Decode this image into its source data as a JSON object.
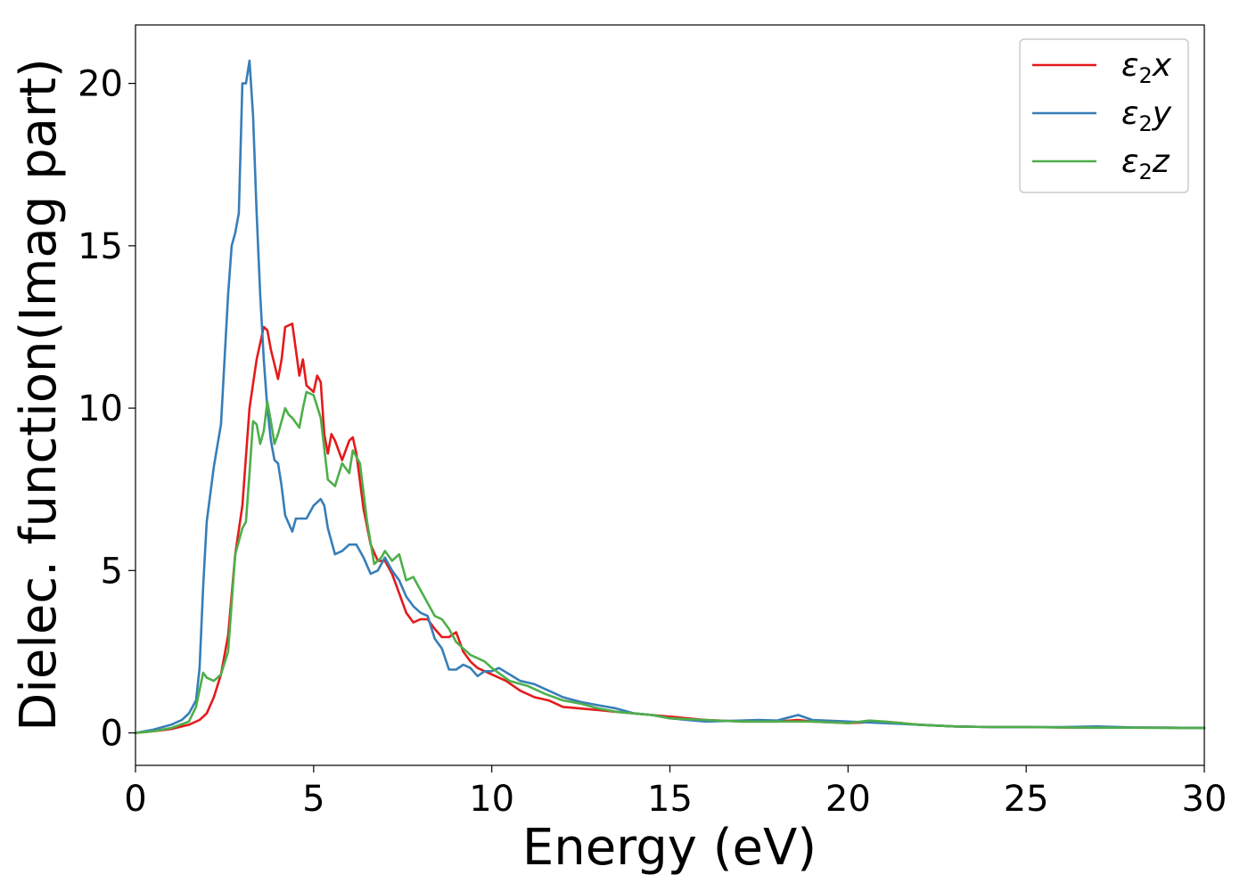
{
  "chart_data": {
    "type": "line",
    "title": "",
    "xlabel": "Energy (eV)",
    "ylabel": "Dielec. function(Imag part)",
    "xlim": [
      0,
      30
    ],
    "ylim": [
      -1.0,
      21.8
    ],
    "xticks": [
      0,
      5,
      10,
      15,
      20,
      25,
      30
    ],
    "yticks": [
      0,
      5,
      10,
      15,
      20
    ],
    "grid": false,
    "legend_position": "top-right",
    "series": [
      {
        "name": "ε₂x",
        "legend_main": "ε",
        "legend_sub": "2",
        "legend_var": "x",
        "color": "#e41a1c",
        "x": [
          0,
          0.5,
          1.0,
          1.5,
          1.8,
          2.0,
          2.2,
          2.4,
          2.6,
          2.8,
          3.0,
          3.2,
          3.4,
          3.6,
          3.7,
          3.8,
          4.0,
          4.1,
          4.2,
          4.4,
          4.5,
          4.6,
          4.7,
          4.8,
          5.0,
          5.1,
          5.2,
          5.3,
          5.4,
          5.5,
          5.6,
          5.8,
          6.0,
          6.1,
          6.2,
          6.4,
          6.6,
          6.8,
          7.0,
          7.2,
          7.4,
          7.6,
          7.8,
          8.0,
          8.2,
          8.4,
          8.6,
          8.8,
          9.0,
          9.2,
          9.4,
          9.6,
          9.8,
          10.0,
          10.4,
          10.8,
          11.2,
          11.6,
          12.0,
          12.5,
          13.0,
          13.5,
          14.0,
          14.5,
          15.0,
          16.0,
          17.0,
          18.0,
          18.6,
          19.0,
          20.0,
          21.0,
          22.0,
          23.0,
          24.0,
          25.0,
          26.0,
          27.0,
          28.0,
          29.0,
          30.0
        ],
        "values": [
          0.0,
          0.05,
          0.12,
          0.25,
          0.4,
          0.6,
          1.1,
          1.8,
          3.0,
          5.5,
          7.0,
          10.0,
          11.5,
          12.5,
          12.4,
          11.8,
          10.9,
          11.5,
          12.5,
          12.6,
          11.8,
          11.0,
          11.5,
          10.7,
          10.5,
          11.0,
          10.8,
          9.2,
          8.6,
          9.2,
          9.0,
          8.4,
          9.0,
          9.1,
          8.6,
          6.9,
          5.8,
          5.3,
          5.3,
          4.9,
          4.3,
          3.7,
          3.4,
          3.5,
          3.5,
          3.2,
          2.95,
          2.95,
          3.1,
          2.5,
          2.2,
          2.0,
          1.9,
          1.8,
          1.6,
          1.3,
          1.1,
          1.0,
          0.8,
          0.75,
          0.7,
          0.65,
          0.6,
          0.55,
          0.5,
          0.4,
          0.35,
          0.35,
          0.4,
          0.35,
          0.3,
          0.35,
          0.25,
          0.2,
          0.18,
          0.18,
          0.17,
          0.16,
          0.16,
          0.16,
          0.15
        ]
      },
      {
        "name": "ε₂y",
        "legend_main": "ε",
        "legend_sub": "2",
        "legend_var": "y",
        "color": "#377eb8",
        "x": [
          0,
          0.5,
          1.0,
          1.3,
          1.5,
          1.7,
          1.8,
          1.9,
          2.0,
          2.2,
          2.4,
          2.6,
          2.7,
          2.8,
          2.9,
          3.0,
          3.1,
          3.2,
          3.3,
          3.4,
          3.5,
          3.6,
          3.7,
          3.8,
          3.9,
          4.0,
          4.1,
          4.2,
          4.4,
          4.5,
          4.6,
          4.8,
          5.0,
          5.2,
          5.3,
          5.4,
          5.6,
          5.8,
          6.0,
          6.2,
          6.4,
          6.6,
          6.8,
          7.0,
          7.2,
          7.4,
          7.6,
          7.8,
          8.0,
          8.2,
          8.4,
          8.6,
          8.8,
          9.0,
          9.2,
          9.4,
          9.6,
          9.8,
          10.0,
          10.2,
          10.5,
          10.8,
          11.2,
          11.6,
          12.0,
          12.5,
          13.0,
          13.5,
          14.0,
          14.5,
          15.0,
          16.0,
          17.0,
          17.5,
          18.0,
          18.6,
          19.0,
          20.0,
          21.0,
          22.0,
          23.0,
          24.0,
          25.0,
          26.0,
          27.0,
          28.0,
          29.0,
          30.0
        ],
        "values": [
          0.0,
          0.1,
          0.25,
          0.4,
          0.6,
          1.0,
          2.0,
          4.5,
          6.5,
          8.2,
          9.5,
          13.5,
          15.0,
          15.4,
          16.0,
          20.0,
          20.0,
          20.7,
          19.0,
          16.0,
          13.5,
          11.5,
          10.0,
          9.0,
          8.4,
          8.3,
          7.6,
          6.7,
          6.2,
          6.6,
          6.6,
          6.6,
          7.0,
          7.2,
          7.0,
          6.3,
          5.5,
          5.6,
          5.8,
          5.8,
          5.4,
          4.9,
          5.0,
          5.4,
          5.0,
          4.7,
          4.2,
          3.9,
          3.7,
          3.6,
          2.9,
          2.6,
          1.95,
          1.95,
          2.1,
          2.0,
          1.75,
          1.9,
          1.9,
          2.0,
          1.8,
          1.6,
          1.5,
          1.3,
          1.1,
          0.95,
          0.85,
          0.75,
          0.6,
          0.55,
          0.45,
          0.35,
          0.38,
          0.4,
          0.38,
          0.55,
          0.4,
          0.35,
          0.3,
          0.25,
          0.2,
          0.18,
          0.18,
          0.18,
          0.2,
          0.17,
          0.16,
          0.15
        ]
      },
      {
        "name": "ε₂z",
        "legend_main": "ε",
        "legend_sub": "2",
        "legend_var": "z",
        "color": "#4daf4a",
        "x": [
          0,
          0.5,
          1.0,
          1.5,
          1.7,
          1.9,
          2.0,
          2.2,
          2.4,
          2.6,
          2.8,
          3.0,
          3.1,
          3.2,
          3.3,
          3.4,
          3.5,
          3.6,
          3.7,
          3.8,
          3.9,
          4.0,
          4.2,
          4.3,
          4.4,
          4.6,
          4.7,
          4.8,
          5.0,
          5.2,
          5.4,
          5.6,
          5.8,
          6.0,
          6.1,
          6.3,
          6.5,
          6.7,
          6.9,
          7.0,
          7.2,
          7.4,
          7.6,
          7.8,
          8.0,
          8.2,
          8.4,
          8.6,
          8.8,
          9.0,
          9.2,
          9.4,
          9.6,
          9.8,
          10.0,
          10.5,
          11.0,
          11.5,
          12.0,
          12.5,
          13.0,
          13.5,
          14.0,
          14.5,
          15.0,
          16.0,
          17.0,
          18.0,
          19.0,
          20.0,
          20.6,
          21.0,
          22.0,
          23.0,
          24.0,
          25.0,
          26.0,
          27.0,
          28.0,
          29.0,
          30.0
        ],
        "values": [
          0.0,
          0.05,
          0.15,
          0.35,
          0.8,
          1.85,
          1.7,
          1.6,
          1.8,
          2.5,
          5.5,
          6.3,
          6.5,
          8.0,
          9.6,
          9.5,
          8.9,
          9.3,
          10.2,
          9.6,
          8.9,
          9.2,
          10.0,
          9.8,
          9.7,
          9.4,
          10.0,
          10.5,
          10.4,
          9.7,
          7.8,
          7.6,
          8.3,
          8.0,
          8.7,
          8.3,
          6.5,
          5.2,
          5.4,
          5.6,
          5.3,
          5.5,
          4.7,
          4.8,
          4.4,
          4.0,
          3.6,
          3.5,
          3.2,
          2.8,
          2.6,
          2.4,
          2.3,
          2.2,
          2.0,
          1.6,
          1.45,
          1.2,
          1.0,
          0.9,
          0.75,
          0.65,
          0.6,
          0.55,
          0.45,
          0.4,
          0.35,
          0.35,
          0.35,
          0.3,
          0.38,
          0.35,
          0.25,
          0.2,
          0.18,
          0.18,
          0.17,
          0.16,
          0.16,
          0.15,
          0.15
        ]
      }
    ]
  }
}
